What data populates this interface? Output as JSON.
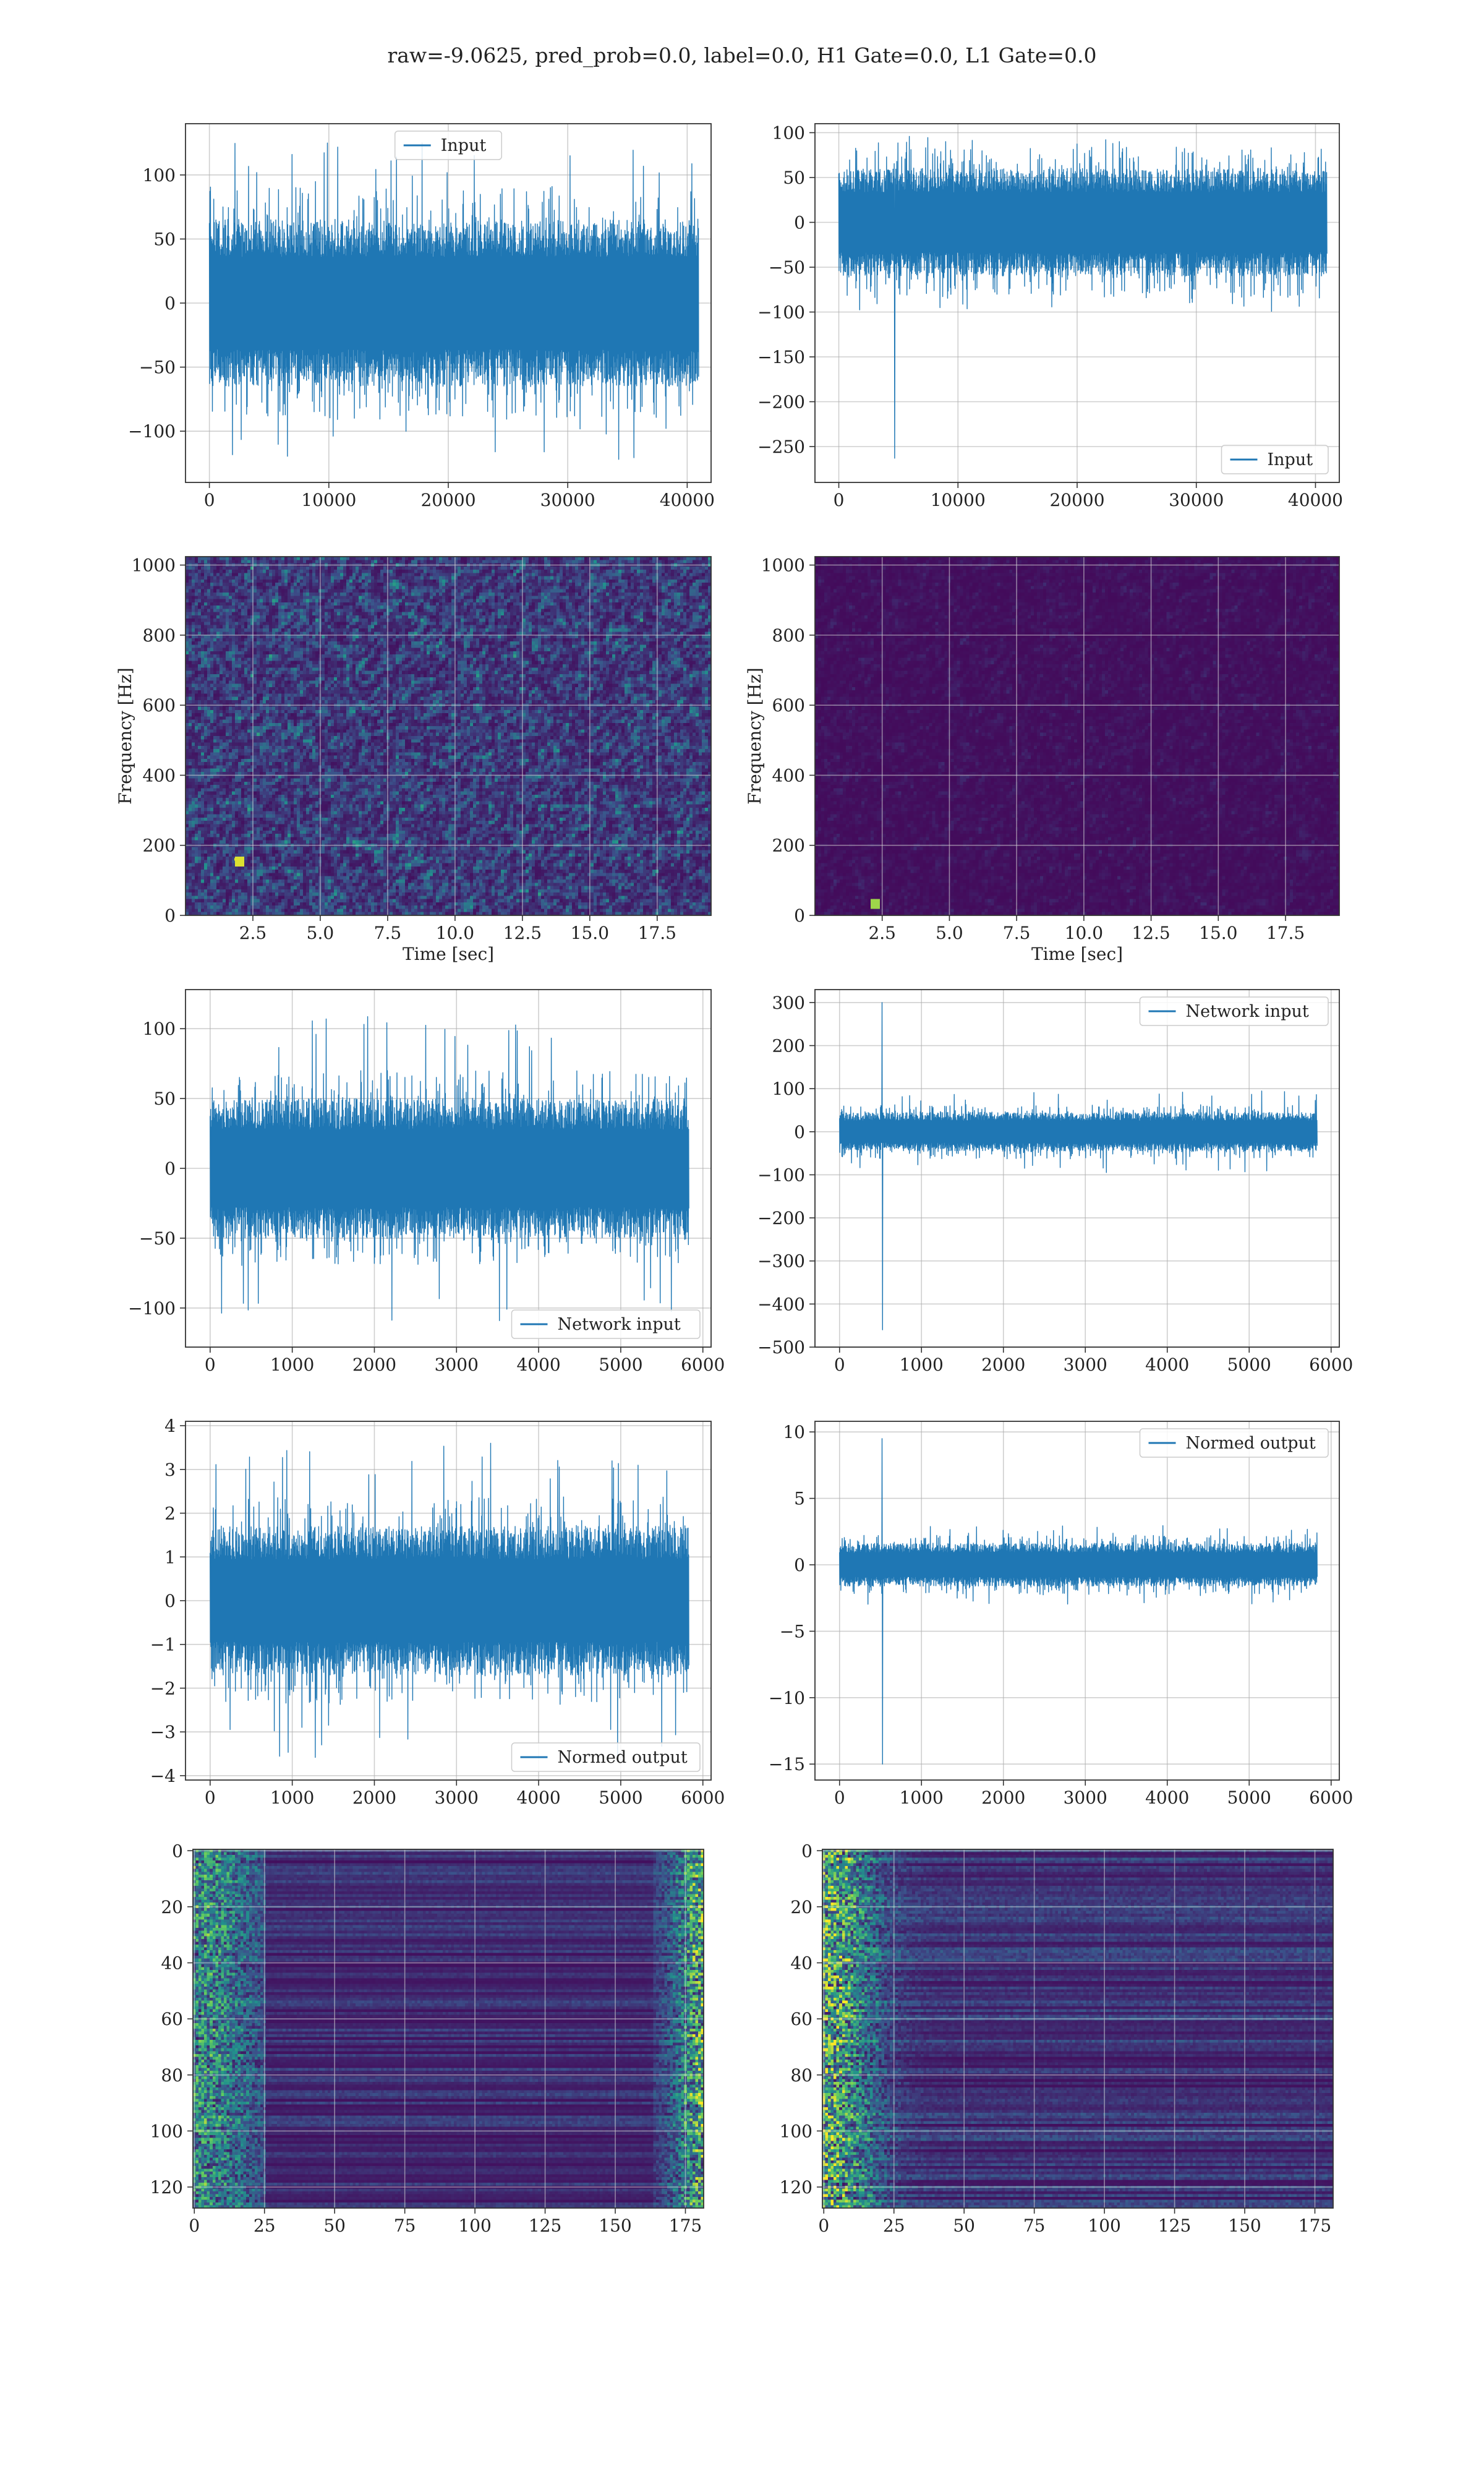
{
  "figure": {
    "suptitle": "raw=-9.0625, pred_prob=0.0, label=0.0, H1 Gate=0.0, L1 Gate=0.0"
  },
  "colors": {
    "line": "#1f77b4",
    "grid": "#b0b0b0",
    "axes_edge": "#333333",
    "viridis": [
      "#440154",
      "#3b528b",
      "#21918c",
      "#5ec962",
      "#fde725"
    ]
  },
  "chart_data": [
    {
      "id": "p1",
      "type": "line",
      "grid": true,
      "legend_loc": "top-center",
      "series": [
        {
          "name": "Input"
        }
      ],
      "xlim": [
        -2000,
        42000
      ],
      "ylim": [
        -140,
        140
      ],
      "xticks": [
        0,
        10000,
        20000,
        30000,
        40000
      ],
      "yticks": [
        -100,
        -50,
        0,
        50,
        100
      ],
      "x_range": [
        0,
        40960
      ],
      "core_amp": 65,
      "spike_amp": 125,
      "min_value": -122,
      "max_value": 128,
      "spikes": []
    },
    {
      "id": "p2",
      "type": "line",
      "grid": true,
      "legend_loc": "bottom-right",
      "series": [
        {
          "name": "Input"
        }
      ],
      "xlim": [
        -2000,
        42000
      ],
      "ylim": [
        -290,
        110
      ],
      "xticks": [
        0,
        10000,
        20000,
        30000,
        40000
      ],
      "yticks": [
        -250,
        -200,
        -150,
        -100,
        -50,
        0,
        50,
        100
      ],
      "x_range": [
        0,
        40960
      ],
      "core_amp": 60,
      "spike_amp": 100,
      "min_value": -263,
      "max_value": 102,
      "spikes": [
        {
          "x": 4700,
          "y": -263
        }
      ]
    },
    {
      "id": "p3",
      "type": "heatmap",
      "grid": true,
      "legend_loc": "none",
      "xlabel": "Time [sec]",
      "ylabel": "Frequency [Hz]",
      "xlim": [
        0,
        19.5
      ],
      "ylim": [
        0,
        1024
      ],
      "xticks": [
        2.5,
        5.0,
        7.5,
        10.0,
        12.5,
        15.0,
        17.5
      ],
      "yticks": [
        0,
        200,
        400,
        600,
        800,
        1000
      ],
      "colormap": "viridis",
      "intensity": "medium",
      "hotspots": [
        {
          "x": 1.9,
          "y": 160,
          "v": 0.95
        }
      ]
    },
    {
      "id": "p4",
      "type": "heatmap",
      "grid": true,
      "legend_loc": "none",
      "xlabel": "Time [sec]",
      "ylabel": "Frequency [Hz]",
      "xlim": [
        0,
        19.5
      ],
      "ylim": [
        0,
        1024
      ],
      "xticks": [
        2.5,
        5.0,
        7.5,
        10.0,
        12.5,
        15.0,
        17.5
      ],
      "yticks": [
        0,
        200,
        400,
        600,
        800,
        1000
      ],
      "colormap": "viridis",
      "intensity": "low",
      "hotspots": [
        {
          "x": 2.2,
          "y": 40,
          "v": 0.85
        }
      ]
    },
    {
      "id": "p5",
      "type": "line",
      "grid": true,
      "legend_loc": "bottom-right",
      "series": [
        {
          "name": "Network input"
        }
      ],
      "xlim": [
        -300,
        6100
      ],
      "ylim": [
        -128,
        128
      ],
      "xticks": [
        0,
        1000,
        2000,
        3000,
        4000,
        5000,
        6000
      ],
      "yticks": [
        -100,
        -50,
        0,
        50,
        100
      ],
      "x_range": [
        0,
        5830
      ],
      "core_amp": 50,
      "spike_amp": 110,
      "min_value": -115,
      "max_value": 116,
      "spikes": []
    },
    {
      "id": "p6",
      "type": "line",
      "grid": true,
      "legend_loc": "top-right",
      "series": [
        {
          "name": "Network input"
        }
      ],
      "xlim": [
        -300,
        6100
      ],
      "ylim": [
        -500,
        330
      ],
      "xticks": [
        0,
        1000,
        2000,
        3000,
        4000,
        5000,
        6000
      ],
      "yticks": [
        -500,
        -400,
        -300,
        -200,
        -100,
        0,
        100,
        200,
        300
      ],
      "x_range": [
        0,
        5830
      ],
      "core_amp": 45,
      "spike_amp": 95,
      "min_value": -460,
      "max_value": 300,
      "spikes": [
        {
          "x": 520,
          "y": 300
        },
        {
          "x": 525,
          "y": -460
        }
      ]
    },
    {
      "id": "p7",
      "type": "line",
      "grid": true,
      "legend_loc": "bottom-right",
      "series": [
        {
          "name": "Normed output"
        }
      ],
      "xlim": [
        -300,
        6100
      ],
      "ylim": [
        -4.1,
        4.1
      ],
      "xticks": [
        0,
        1000,
        2000,
        3000,
        4000,
        5000,
        6000
      ],
      "yticks": [
        -4,
        -3,
        -2,
        -1,
        0,
        1,
        2,
        3,
        4
      ],
      "x_range": [
        0,
        5830
      ],
      "core_amp": 1.7,
      "spike_amp": 3.6,
      "min_value": -3.7,
      "max_value": 3.7,
      "spikes": []
    },
    {
      "id": "p8",
      "type": "line",
      "grid": true,
      "legend_loc": "top-right",
      "series": [
        {
          "name": "Normed output"
        }
      ],
      "xlim": [
        -300,
        6100
      ],
      "ylim": [
        -16.2,
        10.8
      ],
      "xticks": [
        0,
        1000,
        2000,
        3000,
        4000,
        5000,
        6000
      ],
      "yticks": [
        -15,
        -10,
        -5,
        0,
        5,
        10
      ],
      "x_range": [
        0,
        5830
      ],
      "core_amp": 1.6,
      "spike_amp": 3.0,
      "min_value": -15,
      "max_value": 9.5,
      "spikes": [
        {
          "x": 520,
          "y": 9.5
        },
        {
          "x": 525,
          "y": -15
        }
      ]
    },
    {
      "id": "p9",
      "type": "heatmap",
      "grid": true,
      "legend_loc": "none",
      "y_inverted": true,
      "xlim": [
        -0.5,
        181.5
      ],
      "ylim": [
        -0.5,
        127.5
      ],
      "xticks": [
        0,
        25,
        50,
        75,
        100,
        125,
        150,
        175
      ],
      "yticks": [
        0,
        20,
        40,
        60,
        80,
        100,
        120
      ],
      "colormap": "viridis",
      "pattern": "edge-bright"
    },
    {
      "id": "p10",
      "type": "heatmap",
      "grid": true,
      "legend_loc": "none",
      "y_inverted": true,
      "xlim": [
        -0.5,
        181.5
      ],
      "ylim": [
        -0.5,
        127.5
      ],
      "xticks": [
        0,
        25,
        50,
        75,
        100,
        125,
        150,
        175
      ],
      "yticks": [
        0,
        20,
        40,
        60,
        80,
        100,
        120
      ],
      "colormap": "viridis",
      "pattern": "left-bright"
    }
  ]
}
